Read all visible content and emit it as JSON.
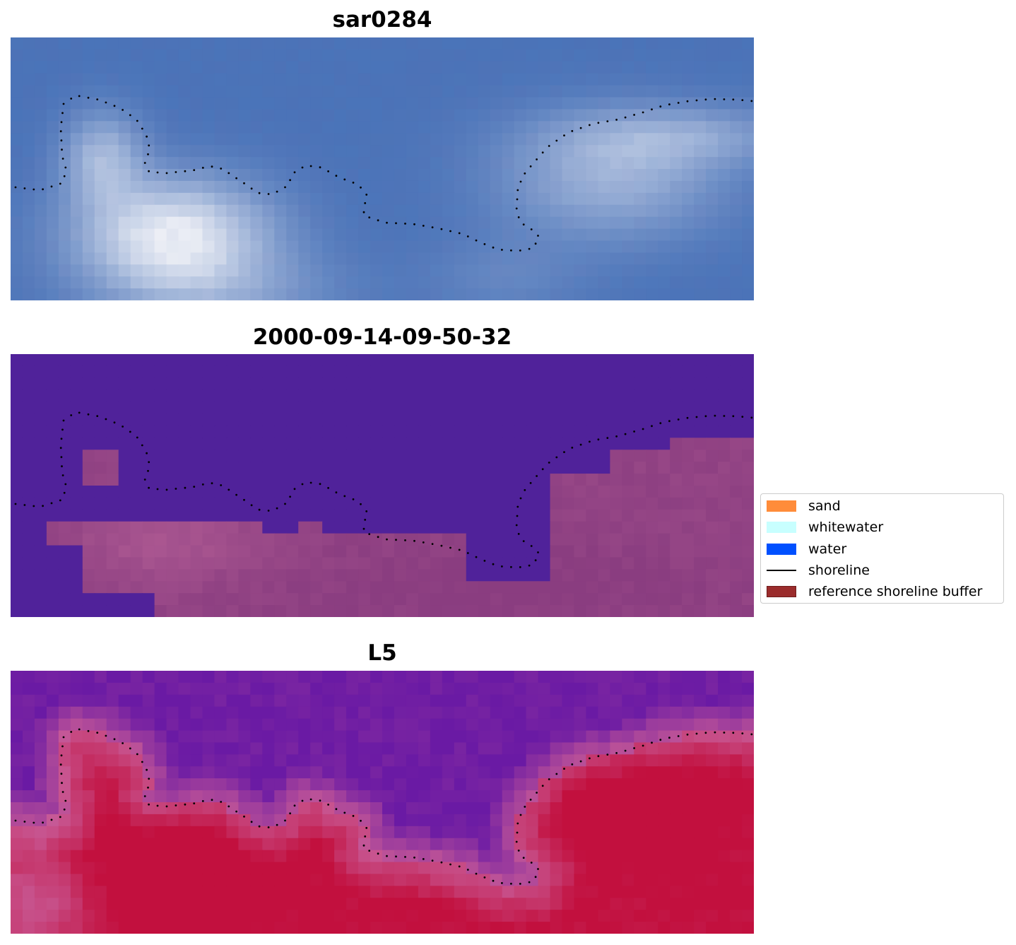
{
  "panels": [
    {
      "title": "sar0284",
      "layer": "rgb-composite"
    },
    {
      "title": "2000-09-14-09-50-32",
      "layer": "classification"
    },
    {
      "title": "L5",
      "layer": "index"
    }
  ],
  "legend": {
    "items": [
      {
        "label": "sand",
        "type": "patch",
        "color": "#ff8c3a"
      },
      {
        "label": "whitewater",
        "type": "patch",
        "color": "#c8ffff"
      },
      {
        "label": "water",
        "type": "patch",
        "color": "#0050ff"
      },
      {
        "label": "shoreline",
        "type": "line",
        "color": "#000000"
      },
      {
        "label": "reference shoreline buffer",
        "type": "patch",
        "color": "#9b2c2c",
        "edge": "#7a1f1f"
      }
    ]
  },
  "colors": {
    "rgb_water": "#4a74b9",
    "rgb_whitewater": "#eef0f6",
    "class_water": "#50229a",
    "class_land": "#8a3d80",
    "index_low": "#6a1aa4",
    "index_high": "#c2103e",
    "shoreline_dots": "#000000"
  }
}
